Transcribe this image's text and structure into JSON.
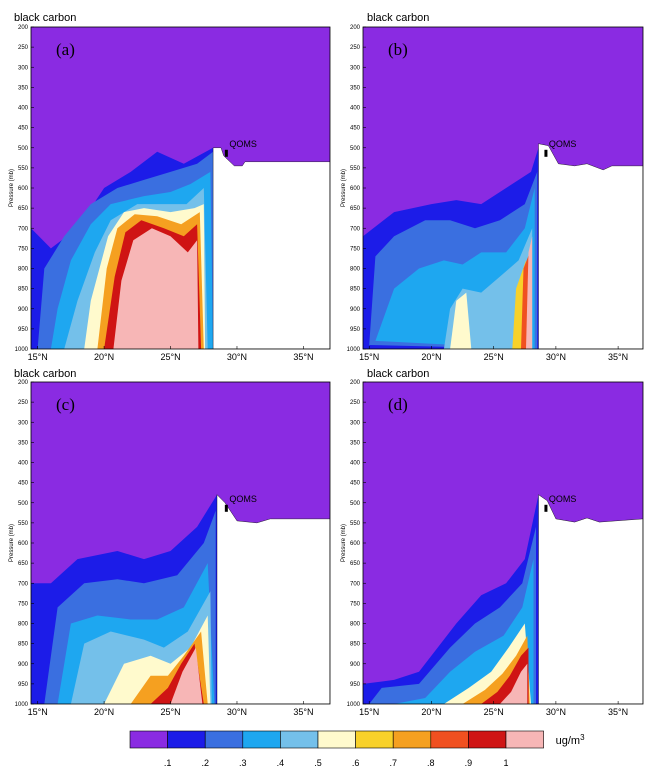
{
  "chart_data": {
    "type": "heatmap",
    "panels": [
      {
        "label": "(a)",
        "title": "black carbon",
        "site": "QOMS"
      },
      {
        "label": "(b)",
        "title": "black carbon",
        "site": "QOMS"
      },
      {
        "label": "(c)",
        "title": "black carbon",
        "site": "QOMS"
      },
      {
        "label": "(d)",
        "title": "black carbon",
        "site": "QOMS"
      }
    ],
    "ylabel": "Pressure (mb)",
    "yticks": [
      200,
      250,
      300,
      350,
      400,
      450,
      500,
      550,
      600,
      650,
      700,
      750,
      800,
      850,
      900,
      950,
      1000
    ],
    "ylim": [
      200,
      1000
    ],
    "xticks": [
      "15°N",
      "20°N",
      "25°N",
      "30°N",
      "35°N"
    ],
    "xtick_values": [
      15,
      20,
      25,
      30,
      35
    ],
    "xlim": [
      14.5,
      37
    ],
    "site_lat": 29.2,
    "colorbar": {
      "levels": [
        ".1",
        ".2",
        ".3",
        ".4",
        ".5",
        ".6",
        ".7",
        ".8",
        ".9",
        "1"
      ],
      "colors": [
        "#8a2be2",
        "#1c1ce8",
        "#3a6fe0",
        "#1ea7f0",
        "#74c0ea",
        "#fffacd",
        "#f8d12a",
        "#f5a020",
        "#f05020",
        "#cf1414",
        "#f7b6b6"
      ],
      "unit": "ug/m",
      "unit_sup": "3"
    }
  }
}
